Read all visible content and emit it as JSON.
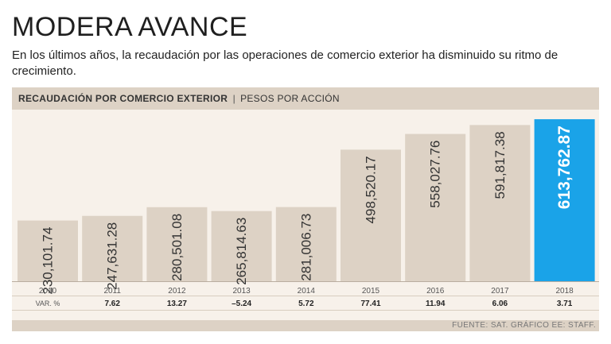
{
  "header": {
    "title": "MODERA AVANCE",
    "subtitle": "En los últimos años, la recaudación por las operaciones de comercio exterior ha disminuido su ritmo de crecimiento."
  },
  "chart_header": {
    "label": "RECAUDACIÓN POR COMERCIO EXTERIOR",
    "separator": "|",
    "unit": "PESOS POR ACCIÓN"
  },
  "chart_data": {
    "type": "bar",
    "categories": [
      "2010",
      "2011",
      "2012",
      "2013",
      "2014",
      "2015",
      "2016",
      "2017",
      "2018"
    ],
    "values": [
      230101.74,
      247631.28,
      280501.08,
      265814.63,
      281006.73,
      498520.17,
      558027.76,
      591817.38,
      613762.87
    ],
    "value_labels": [
      "230,101.74",
      "247,631.28",
      "280,501.08",
      "265,814.63",
      "281,006.73",
      "498,520.17",
      "558,027.76",
      "591,817.38",
      "613,762.87"
    ],
    "var_label": "VAR. %",
    "var_values": [
      "",
      "7.62",
      "13.27",
      "–5.24",
      "5.72",
      "77.41",
      "11.94",
      "6.06",
      "3.71"
    ],
    "highlight_index": 8,
    "colors": {
      "bar": "#ddd2c5",
      "highlight": "#1aa3e8",
      "label": "#333333",
      "highlight_label": "#ffffff"
    },
    "ylim": [
      0,
      620000
    ]
  },
  "footer": {
    "source": "FUENTE: SAT. GRÁFICO EE: STAFF."
  }
}
